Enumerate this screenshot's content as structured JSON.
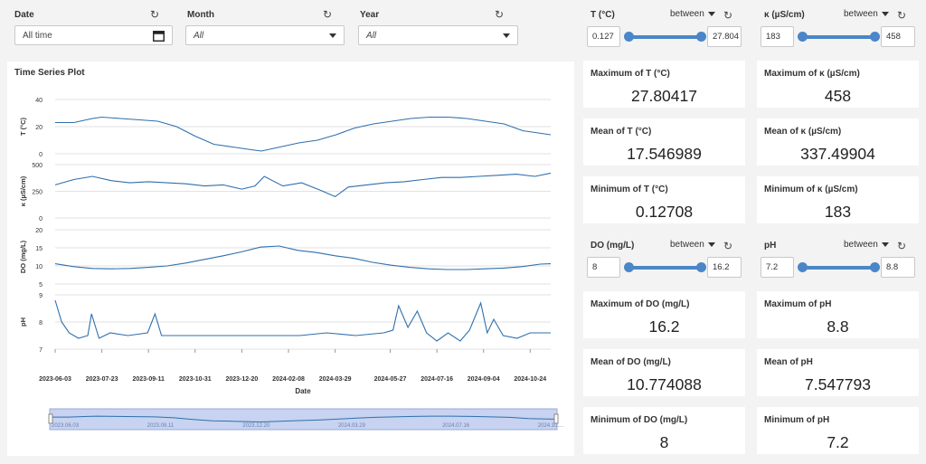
{
  "filters": {
    "date": {
      "label": "Date",
      "value": "All time"
    },
    "month": {
      "label": "Month",
      "value": "All"
    },
    "year": {
      "label": "Year",
      "value": "All"
    },
    "reset_glyph": "↻"
  },
  "sliders": {
    "t": {
      "label": "T (°C)",
      "mode": "between",
      "min": "0.127",
      "max": "27.804",
      "fill_from": 0,
      "fill_to": 1
    },
    "k": {
      "label": "κ (µS/cm)",
      "mode": "between",
      "min": "183",
      "max": "458",
      "fill_from": 0,
      "fill_to": 1
    },
    "do": {
      "label": "DO (mg/L)",
      "mode": "between",
      "min": "8",
      "max": "16.2",
      "fill_from": 0,
      "fill_to": 1
    },
    "ph": {
      "label": "pH",
      "mode": "between",
      "min": "7.2",
      "max": "8.8",
      "fill_from": 0,
      "fill_to": 1
    }
  },
  "cards": {
    "t_max": {
      "title": "Maximum of T (°C)",
      "value": "27.80417"
    },
    "t_mean": {
      "title": "Mean of T (°C)",
      "value": "17.546989"
    },
    "t_min": {
      "title": "Minimum of T (°C)",
      "value": "0.12708"
    },
    "k_max": {
      "title": "Maximum of κ (µS/cm)",
      "value": "458"
    },
    "k_mean": {
      "title": "Mean of κ (µS/cm)",
      "value": "337.49904"
    },
    "k_min": {
      "title": "Minimum of κ (µS/cm)",
      "value": "183"
    },
    "do_max": {
      "title": "Maximum of DO (mg/L)",
      "value": "16.2"
    },
    "do_mean": {
      "title": "Mean of DO (mg/L)",
      "value": "10.774088"
    },
    "do_min": {
      "title": "Minimum of DO (mg/L)",
      "value": "8"
    },
    "ph_max": {
      "title": "Maximum of pH",
      "value": "8.8"
    },
    "ph_mean": {
      "title": "Mean of pH",
      "value": "7.547793"
    },
    "ph_min": {
      "title": "Minimum of pH",
      "value": "7.2"
    }
  },
  "plot": {
    "title": "Time Series Plot",
    "xlabel": "Date",
    "color": "#2f6fad"
  },
  "chart_data": {
    "type": "line",
    "title": "Time Series Plot",
    "xlabel": "Date",
    "x_ticks": [
      "2023-06-03",
      "2023-07-23",
      "2023-09-11",
      "2023-10-31",
      "2023-12-20",
      "2024-02-08",
      "2024-03-29",
      "2024-05-27",
      "2024-07-16",
      "2024-09-04",
      "2024-10-24"
    ],
    "x_range": [
      "2023-06-03",
      "2024-11-15"
    ],
    "navigator_ticks": [
      "2023-06-03",
      "2023-09-11",
      "2023-12-20",
      "2024-03-29",
      "2024-07-16",
      "2024-10-..."
    ],
    "series": [
      {
        "name": "T (°C)",
        "ylabel": "T (°C)",
        "ylim": [
          0,
          40
        ],
        "yticks": [
          0,
          20,
          40
        ],
        "x": [
          "2023-06-03",
          "2023-06-23",
          "2023-07-13",
          "2023-07-23",
          "2023-08-12",
          "2023-09-01",
          "2023-09-21",
          "2023-10-11",
          "2023-10-31",
          "2023-11-20",
          "2023-12-10",
          "2023-12-30",
          "2024-01-10",
          "2024-01-30",
          "2024-02-19",
          "2024-03-10",
          "2024-03-30",
          "2024-04-19",
          "2024-05-09",
          "2024-05-29",
          "2024-06-18",
          "2024-07-08",
          "2024-07-28",
          "2024-08-17",
          "2024-09-06",
          "2024-09-26",
          "2024-10-16",
          "2024-11-05",
          "2024-11-15"
        ],
        "values": [
          23,
          23,
          26,
          27,
          26,
          25,
          24,
          20,
          13,
          7,
          5,
          3,
          2,
          5,
          8,
          10,
          14,
          19,
          22,
          24,
          26,
          27,
          27,
          26,
          24,
          22,
          17,
          15,
          14
        ]
      },
      {
        "name": "κ (µS/cm)",
        "ylabel": "κ (µS/cm)",
        "ylim": [
          0,
          500
        ],
        "yticks": [
          0,
          250,
          500
        ],
        "x": [
          "2023-06-03",
          "2023-06-23",
          "2023-07-13",
          "2023-08-02",
          "2023-08-22",
          "2023-09-11",
          "2023-10-01",
          "2023-10-21",
          "2023-11-10",
          "2023-11-30",
          "2023-12-20",
          "2024-01-03",
          "2024-01-13",
          "2024-02-02",
          "2024-02-22",
          "2024-03-13",
          "2024-03-29",
          "2024-04-12",
          "2024-05-02",
          "2024-05-22",
          "2024-06-11",
          "2024-07-01",
          "2024-07-21",
          "2024-08-10",
          "2024-08-30",
          "2024-09-19",
          "2024-10-09",
          "2024-10-29",
          "2024-11-15"
        ],
        "values": [
          310,
          360,
          390,
          350,
          330,
          340,
          330,
          320,
          300,
          310,
          270,
          300,
          390,
          300,
          330,
          260,
          200,
          290,
          310,
          330,
          340,
          360,
          380,
          380,
          390,
          400,
          410,
          390,
          420
        ]
      },
      {
        "name": "DO (mg/L)",
        "ylabel": "DO (mg/L)",
        "ylim": [
          5,
          20
        ],
        "yticks": [
          5,
          10,
          15,
          20
        ],
        "x": [
          "2023-06-03",
          "2023-06-23",
          "2023-07-13",
          "2023-08-02",
          "2023-08-22",
          "2023-09-11",
          "2023-10-01",
          "2023-10-21",
          "2023-11-10",
          "2023-11-30",
          "2023-12-20",
          "2024-01-09",
          "2024-01-29",
          "2024-02-18",
          "2024-03-09",
          "2024-03-29",
          "2024-04-18",
          "2024-05-08",
          "2024-05-28",
          "2024-06-17",
          "2024-07-07",
          "2024-07-27",
          "2024-08-16",
          "2024-09-05",
          "2024-09-25",
          "2024-10-15",
          "2024-11-04",
          "2024-11-15"
        ],
        "values": [
          10.6,
          9.8,
          9.3,
          9.2,
          9.3,
          9.6,
          10.0,
          10.8,
          11.8,
          12.8,
          13.9,
          15.2,
          15.5,
          14.3,
          13.7,
          12.8,
          12.1,
          11.0,
          10.2,
          9.6,
          9.2,
          9.0,
          9.0,
          9.2,
          9.4,
          9.8,
          10.5,
          10.6
        ]
      },
      {
        "name": "pH",
        "ylabel": "pH",
        "ylim": [
          7,
          9
        ],
        "yticks": [
          7,
          8,
          9
        ],
        "x": [
          "2023-06-03",
          "2023-06-10",
          "2023-06-18",
          "2023-06-28",
          "2023-07-08",
          "2023-07-12",
          "2023-07-20",
          "2023-08-01",
          "2023-08-20",
          "2023-09-10",
          "2023-09-18",
          "2023-09-25",
          "2023-10-20",
          "2023-11-20",
          "2023-12-20",
          "2024-01-20",
          "2024-02-20",
          "2024-03-20",
          "2024-04-20",
          "2024-05-20",
          "2024-05-30",
          "2024-06-05",
          "2024-06-15",
          "2024-06-25",
          "2024-07-05",
          "2024-07-16",
          "2024-07-28",
          "2024-08-10",
          "2024-08-20",
          "2024-09-01",
          "2024-09-08",
          "2024-09-15",
          "2024-09-25",
          "2024-10-10",
          "2024-10-24",
          "2024-11-15"
        ],
        "values": [
          8.8,
          8.0,
          7.6,
          7.4,
          7.5,
          8.3,
          7.4,
          7.6,
          7.5,
          7.6,
          8.3,
          7.5,
          7.5,
          7.5,
          7.5,
          7.5,
          7.5,
          7.6,
          7.5,
          7.6,
          7.7,
          8.6,
          7.8,
          8.4,
          7.6,
          7.3,
          7.6,
          7.3,
          7.7,
          8.7,
          7.6,
          8.1,
          7.5,
          7.4,
          7.6,
          7.6
        ]
      }
    ]
  }
}
